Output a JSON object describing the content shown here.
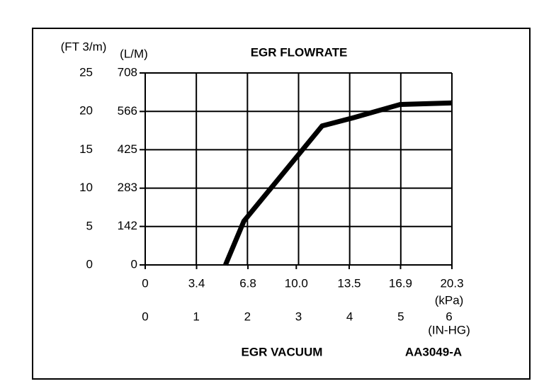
{
  "chart_data": {
    "type": "line",
    "title": "EGR FLOWRATE",
    "y_label": "(FT 3/m)",
    "y2_label": "(L/M)",
    "x_label": "(IN-HG)",
    "x2_label": "(kPa)",
    "x_title": "EGR VACUUM",
    "annotation": "AA3049-A",
    "x": [
      1.57,
      1.93,
      3.46,
      4.09,
      4.99,
      6
    ],
    "values": [
      0,
      5.7,
      18.1,
      19.2,
      20.9,
      21.1
    ],
    "color": "#000000",
    "xlim": [
      0,
      6
    ],
    "xticks": [
      0,
      1,
      2,
      3,
      4,
      5,
      6
    ],
    "x2lim": [
      0,
      20.3
    ],
    "x2ticks": [
      0,
      3.4,
      6.8,
      {
        "value": 10,
        "label": "10.0"
      },
      13.5,
      16.9,
      20.3
    ],
    "ylim": [
      0,
      25
    ],
    "yticks": [
      0,
      5,
      10,
      15,
      20,
      25
    ],
    "y2lim": [
      0,
      708
    ],
    "y2ticks": [
      0,
      142,
      283,
      425,
      566,
      708
    ],
    "grid": true
  }
}
